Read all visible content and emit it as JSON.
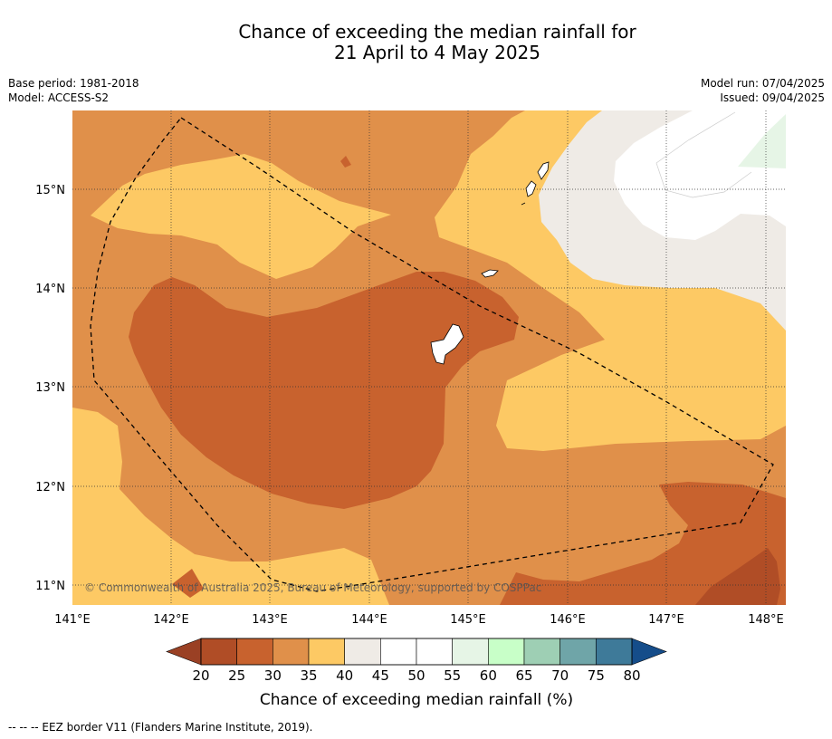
{
  "title": {
    "line1": "Chance of exceeding the median rainfall for",
    "line2": "21 April to 4 May 2025"
  },
  "meta": {
    "base_period": "Base period: 1981-2018",
    "model": "Model: ACCESS-S2",
    "model_run": "Model run: 07/04/2025",
    "issued": "Issued: 09/04/2025"
  },
  "map": {
    "lon_labels": [
      "141°E",
      "142°E",
      "143°E",
      "144°E",
      "145°E",
      "146°E",
      "147°E",
      "148°E"
    ],
    "lat_labels": [
      "15°N",
      "14°N",
      "13°N",
      "12°N",
      "11°N"
    ],
    "copyright": "© Commonwealth of Australia 2025, Bureau of Meteorology, supported by COSPPac"
  },
  "colorbar": {
    "ticks": [
      "20",
      "25",
      "30",
      "35",
      "40",
      "45",
      "50",
      "55",
      "60",
      "65",
      "70",
      "75",
      "80"
    ],
    "colors": [
      "#b04d26",
      "#c8622e",
      "#e0904a",
      "#fdc964",
      "#efebe6",
      "#ffffff",
      "#ffffff",
      "#e6f5e6",
      "#c8ffc8",
      "#9ecfb4",
      "#6fa5a8",
      "#3e7a99"
    ],
    "under_color": "#9a4024",
    "over_color": "#154d8a",
    "label": "Chance of exceeding median rainfall (%)"
  },
  "footer": {
    "legend": "--  --  -- EEZ border V11 (Flanders Marine Institute, 2019)."
  }
}
